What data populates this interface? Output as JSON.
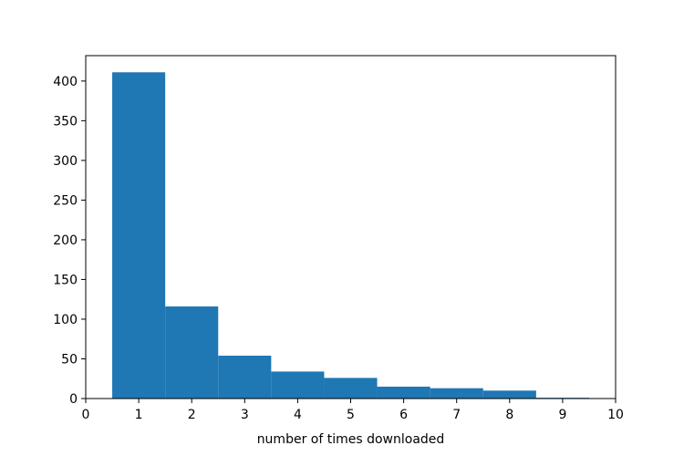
{
  "chart_data": {
    "type": "bar",
    "title": "",
    "xlabel": "number of times downloaded",
    "ylabel": "",
    "bins": [
      {
        "x_start": 0.5,
        "x_end": 1.5,
        "value": 411
      },
      {
        "x_start": 1.5,
        "x_end": 2.5,
        "value": 116
      },
      {
        "x_start": 2.5,
        "x_end": 3.5,
        "value": 54
      },
      {
        "x_start": 3.5,
        "x_end": 4.5,
        "value": 34
      },
      {
        "x_start": 4.5,
        "x_end": 5.5,
        "value": 26
      },
      {
        "x_start": 5.5,
        "x_end": 6.5,
        "value": 15
      },
      {
        "x_start": 6.5,
        "x_end": 7.5,
        "value": 13
      },
      {
        "x_start": 7.5,
        "x_end": 8.5,
        "value": 10
      },
      {
        "x_start": 8.5,
        "x_end": 9.5,
        "value": 1
      }
    ],
    "xlim": [
      0,
      10
    ],
    "ylim": [
      0,
      432
    ],
    "x_ticks": [
      0,
      1,
      2,
      3,
      4,
      5,
      6,
      7,
      8,
      9,
      10
    ],
    "y_ticks": [
      0,
      50,
      100,
      150,
      200,
      250,
      300,
      350,
      400
    ],
    "bar_color": "#1f77b4",
    "grid": false,
    "legend": "none"
  }
}
